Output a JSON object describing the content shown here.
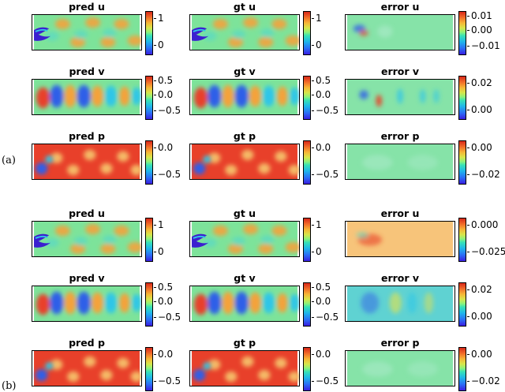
{
  "figure": {
    "labels": [
      "(a)",
      "(b)"
    ],
    "groups": [
      {
        "rows": [
          {
            "cols": [
              {
                "title": "pred u",
                "field": "u",
                "ticks": [
                  "1",
                  "0"
                ]
              },
              {
                "title": "gt u",
                "field": "u",
                "ticks": [
                  "1",
                  "0"
                ]
              },
              {
                "title": "error u",
                "field": "eu_a",
                "ticks": [
                  "0.01",
                  "0.00",
                  "−0.01"
                ]
              }
            ]
          },
          {
            "cols": [
              {
                "title": "pred v",
                "field": "v",
                "ticks": [
                  "0.5",
                  "0.0",
                  "−0.5"
                ]
              },
              {
                "title": "gt v",
                "field": "v",
                "ticks": [
                  "0.5",
                  "0.0",
                  "−0.5"
                ]
              },
              {
                "title": "error v",
                "field": "ev_a",
                "ticks": [
                  "0.02",
                  "0.00"
                ]
              }
            ]
          },
          {
            "cols": [
              {
                "title": "pred p",
                "field": "p",
                "ticks": [
                  "0.0",
                  "−0.5"
                ]
              },
              {
                "title": "gt p",
                "field": "p",
                "ticks": [
                  "0.0",
                  "−0.5"
                ]
              },
              {
                "title": "error p",
                "field": "ep",
                "ticks": [
                  "0.00",
                  "−0.02"
                ]
              }
            ]
          }
        ]
      },
      {
        "rows": [
          {
            "cols": [
              {
                "title": "pred u",
                "field": "u",
                "ticks": [
                  "1",
                  "0"
                ]
              },
              {
                "title": "gt u",
                "field": "u",
                "ticks": [
                  "1",
                  "0"
                ]
              },
              {
                "title": "error u",
                "field": "eu_b",
                "ticks": [
                  "0.000",
                  "−0.025"
                ]
              }
            ]
          },
          {
            "cols": [
              {
                "title": "pred v",
                "field": "v",
                "ticks": [
                  "0.5",
                  "0.0",
                  "−0.5"
                ]
              },
              {
                "title": "gt v",
                "field": "v",
                "ticks": [
                  "0.5",
                  "0.0",
                  "−0.5"
                ]
              },
              {
                "title": "error v",
                "field": "ev_b",
                "ticks": [
                  "0.02",
                  "0.00"
                ]
              }
            ]
          },
          {
            "cols": [
              {
                "title": "pred p",
                "field": "p",
                "ticks": [
                  "0.0",
                  "−0.5"
                ]
              },
              {
                "title": "gt p",
                "field": "p",
                "ticks": [
                  "0.0",
                  "−0.5"
                ]
              },
              {
                "title": "error p",
                "field": "ep",
                "ticks": [
                  "0.00",
                  "−0.02"
                ]
              }
            ]
          }
        ]
      }
    ]
  }
}
